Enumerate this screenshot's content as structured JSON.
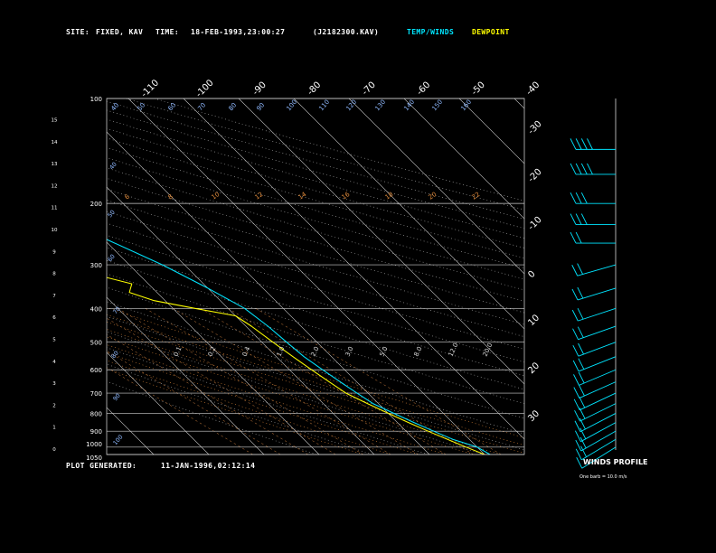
{
  "header": {
    "site_label": "SITE:",
    "site_value": "FIXED, KAV",
    "time_label": "TIME:",
    "time_value": "18-FEB-1993,23:00:27",
    "file_id": "(J2182300.KAV)",
    "temp_label": "TEMP/WINDS",
    "dew_label": "DEWPOINT",
    "colors": {
      "temp": "#00e5ff",
      "dew": "#ffff00",
      "text": "#ffffff"
    }
  },
  "footer": {
    "generated_label": "PLOT GENERATED:",
    "generated_value": "11-JAN-1996,02:12:14"
  },
  "wind_panel": {
    "title": "WINDS PROFILE",
    "legend": "One barb = 10.0 m/s"
  },
  "chart_data": {
    "type": "line",
    "pressure_levels": [
      100,
      200,
      300,
      400,
      500,
      600,
      700,
      800,
      900,
      1000,
      1050
    ],
    "pressure_labels": [
      "100",
      "200",
      "300",
      "400",
      "500",
      "600",
      "700",
      "800",
      "900",
      "1000",
      "1050"
    ],
    "height_ticks": [
      "0",
      "1",
      "2",
      "3",
      "4",
      "5",
      "6",
      "7",
      "8",
      "9",
      "10",
      "11",
      "12",
      "13",
      "14",
      "15"
    ],
    "top_temp_ticks": [
      "-110",
      "-100",
      "-90",
      "-80",
      "-70",
      "-60",
      "-50",
      "-40"
    ],
    "right_temp_ticks": [
      "-30",
      "-20",
      "-10",
      "0",
      "10",
      "20",
      "30"
    ],
    "dry_adiabat_labels": [
      "40",
      "50",
      "60",
      "70",
      "80",
      "90",
      "100",
      "110",
      "120",
      "130",
      "140",
      "150",
      "160"
    ],
    "moist_adiabat_labels": [
      "6",
      "8",
      "10",
      "12",
      "14",
      "16",
      "18",
      "20",
      "22"
    ],
    "mixing_ratio_labels": [
      "0.1",
      "0.2",
      "0.4",
      "1.0",
      "2.0",
      "3.0",
      "5.0",
      "8.0",
      "12.0",
      "20.0"
    ],
    "series": [
      {
        "key": "temp",
        "color": "#00e5ff",
        "points": [
          [
            1050,
            -49
          ],
          [
            1000,
            -50
          ],
          [
            950,
            -53
          ],
          [
            900,
            -55
          ],
          [
            850,
            -57
          ],
          [
            800,
            -59
          ],
          [
            750,
            -61
          ],
          [
            700,
            -62
          ],
          [
            650,
            -63
          ],
          [
            600,
            -64
          ],
          [
            550,
            -65
          ],
          [
            500,
            -65.5
          ],
          [
            450,
            -66
          ],
          [
            400,
            -67
          ],
          [
            350,
            -70
          ],
          [
            300,
            -74
          ],
          [
            250,
            -80
          ],
          [
            200,
            -84
          ],
          [
            170,
            -89
          ],
          [
            150,
            -91
          ],
          [
            130,
            -92
          ],
          [
            115,
            -92.5
          ],
          [
            100,
            -92
          ]
        ]
      },
      {
        "key": "dew",
        "color": "#ffff00",
        "points": [
          [
            1050,
            -50
          ],
          [
            1000,
            -52
          ],
          [
            950,
            -54
          ],
          [
            900,
            -56
          ],
          [
            850,
            -58
          ],
          [
            800,
            -60
          ],
          [
            750,
            -62
          ],
          [
            700,
            -64
          ],
          [
            650,
            -65
          ],
          [
            600,
            -66
          ],
          [
            550,
            -67
          ],
          [
            500,
            -68
          ],
          [
            450,
            -69
          ],
          [
            420,
            -70
          ],
          [
            400,
            -76
          ],
          [
            380,
            -82
          ],
          [
            360,
            -85
          ],
          [
            340,
            -83
          ],
          [
            320,
            -88
          ],
          [
            300,
            -96
          ],
          [
            280,
            -97
          ],
          [
            260,
            -99
          ],
          [
            240,
            -98
          ],
          [
            220,
            -100
          ],
          [
            200,
            -99
          ],
          [
            180,
            -101
          ],
          [
            160,
            -103
          ],
          [
            140,
            -104
          ],
          [
            120,
            -104.5
          ],
          [
            100,
            -104
          ]
        ]
      }
    ],
    "winds": [
      {
        "p": 140,
        "speed": 40
      },
      {
        "p": 165,
        "speed": 40
      },
      {
        "p": 200,
        "speed": 30
      },
      {
        "p": 230,
        "speed": 30
      },
      {
        "p": 260,
        "speed": 20
      },
      {
        "p": 300,
        "speed": 20
      },
      {
        "p": 350,
        "speed": 20
      },
      {
        "p": 400,
        "speed": 20
      },
      {
        "p": 450,
        "speed": 20
      },
      {
        "p": 500,
        "speed": 20
      },
      {
        "p": 550,
        "speed": 20
      },
      {
        "p": 600,
        "speed": 20
      },
      {
        "p": 650,
        "speed": 20
      },
      {
        "p": 700,
        "speed": 20
      },
      {
        "p": 750,
        "speed": 20
      },
      {
        "p": 800,
        "speed": 20
      },
      {
        "p": 850,
        "speed": 20
      },
      {
        "p": 900,
        "speed": 20
      },
      {
        "p": 950,
        "speed": 20
      },
      {
        "p": 1000,
        "speed": 10
      }
    ]
  }
}
